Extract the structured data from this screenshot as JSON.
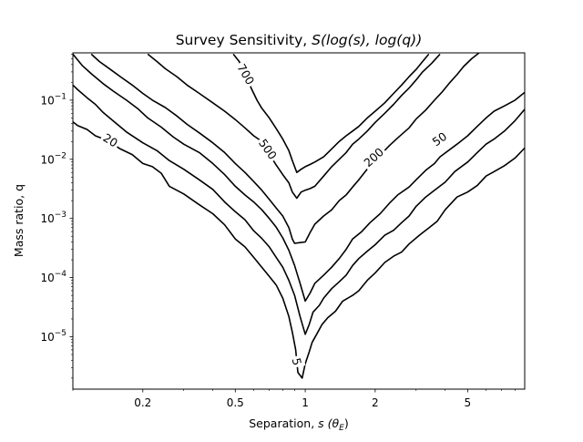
{
  "chart_data": {
    "type": "contour",
    "title_main": "Survey Sensitivity, ",
    "title_math": "S(log(s), log(q))",
    "xlabel_main": "Separation, ",
    "xlabel_math": "s (θ",
    "xlabel_sub": "E",
    "xlabel_close": ")",
    "ylabel": "Mass ratio, q",
    "xscale": "log",
    "yscale": "log",
    "xlim": [
      0.1,
      8.8
    ],
    "ylim": [
      1.3e-06,
      0.63
    ],
    "grid": false,
    "legend": "none",
    "line_color": "#000000",
    "x_ticks": [
      {
        "value": 0.2,
        "label": "0.2"
      },
      {
        "value": 0.5,
        "label": "0.5"
      },
      {
        "value": 1,
        "label": "1"
      },
      {
        "value": 2,
        "label": "2"
      },
      {
        "value": 5,
        "label": "5"
      }
    ],
    "y_ticks": [
      {
        "value": 1e-05,
        "base": "10",
        "exp": "−5"
      },
      {
        "value": 0.0001,
        "base": "10",
        "exp": "−4"
      },
      {
        "value": 0.001,
        "base": "10",
        "exp": "−3"
      },
      {
        "value": 0.01,
        "base": "10",
        "exp": "−2"
      },
      {
        "value": 0.1,
        "base": "10",
        "exp": "−1"
      }
    ],
    "contours": [
      {
        "level": 5,
        "label": "5",
        "label_at": [
          0.92,
          3.8e-06
        ],
        "label_rotation": 78,
        "points": [
          [
            0.1,
            0.043
          ],
          [
            0.105,
            0.037
          ],
          [
            0.115,
            0.032
          ],
          [
            0.125,
            0.025
          ],
          [
            0.14,
            0.021
          ],
          [
            0.16,
            0.015
          ],
          [
            0.18,
            0.012
          ],
          [
            0.2,
            0.0085
          ],
          [
            0.22,
            0.0075
          ],
          [
            0.24,
            0.0058
          ],
          [
            0.26,
            0.0035
          ],
          [
            0.3,
            0.0026
          ],
          [
            0.35,
            0.0017
          ],
          [
            0.4,
            0.0012
          ],
          [
            0.45,
            0.00078
          ],
          [
            0.5,
            0.00045
          ],
          [
            0.55,
            0.00033
          ],
          [
            0.6,
            0.00022
          ],
          [
            0.65,
            0.00015
          ],
          [
            0.7,
            0.000105
          ],
          [
            0.75,
            7.5e-05
          ],
          [
            0.8,
            4.5e-05
          ],
          [
            0.85,
            2.2e-05
          ],
          [
            0.88,
            1.2e-05
          ],
          [
            0.91,
            6e-06
          ],
          [
            0.93,
            2.5e-06
          ],
          [
            0.97,
            2e-06
          ],
          [
            1.0,
            3.5e-06
          ],
          [
            1.04,
            5.5e-06
          ],
          [
            1.07,
            8e-06
          ],
          [
            1.12,
            1.1e-05
          ],
          [
            1.18,
            1.6e-05
          ],
          [
            1.25,
            2.1e-05
          ],
          [
            1.35,
            2.7e-05
          ],
          [
            1.45,
            4e-05
          ],
          [
            1.6,
            5e-05
          ],
          [
            1.7,
            6e-05
          ],
          [
            1.85,
            9e-05
          ],
          [
            2.0,
            0.00012
          ],
          [
            2.2,
            0.00018
          ],
          [
            2.4,
            0.00023
          ],
          [
            2.6,
            0.00027
          ],
          [
            2.8,
            0.00037
          ],
          [
            3.1,
            0.00052
          ],
          [
            3.4,
            0.00069
          ],
          [
            3.7,
            0.0009
          ],
          [
            4.0,
            0.0014
          ],
          [
            4.5,
            0.0023
          ],
          [
            5.0,
            0.0028
          ],
          [
            5.5,
            0.0036
          ],
          [
            6.0,
            0.0052
          ],
          [
            6.5,
            0.0062
          ],
          [
            7.2,
            0.0078
          ],
          [
            8.0,
            0.0105
          ],
          [
            8.8,
            0.0155
          ]
        ]
      },
      {
        "level": 20,
        "label": "20",
        "label_at": [
          0.145,
          0.021
        ],
        "label_rotation": 32,
        "points": [
          [
            0.1,
            0.18
          ],
          [
            0.105,
            0.15
          ],
          [
            0.115,
            0.11
          ],
          [
            0.125,
            0.085
          ],
          [
            0.135,
            0.062
          ],
          [
            0.17,
            0.029
          ],
          [
            0.2,
            0.019
          ],
          [
            0.23,
            0.014
          ],
          [
            0.26,
            0.0095
          ],
          [
            0.3,
            0.0068
          ],
          [
            0.35,
            0.0045
          ],
          [
            0.4,
            0.0031
          ],
          [
            0.45,
            0.0019
          ],
          [
            0.5,
            0.0013
          ],
          [
            0.55,
            0.00095
          ],
          [
            0.6,
            0.00062
          ],
          [
            0.65,
            0.00046
          ],
          [
            0.7,
            0.00033
          ],
          [
            0.75,
            0.00022
          ],
          [
            0.8,
            0.00015
          ],
          [
            0.85,
            9e-05
          ],
          [
            0.9,
            5e-05
          ],
          [
            0.95,
            2.2e-05
          ],
          [
            1.0,
            1.1e-05
          ],
          [
            1.04,
            1.6e-05
          ],
          [
            1.08,
            2.6e-05
          ],
          [
            1.15,
            3.4e-05
          ],
          [
            1.2,
            4.5e-05
          ],
          [
            1.3,
            6.5e-05
          ],
          [
            1.4,
            8.5e-05
          ],
          [
            1.5,
            0.00011
          ],
          [
            1.6,
            0.00016
          ],
          [
            1.7,
            0.00021
          ],
          [
            1.85,
            0.00028
          ],
          [
            2.0,
            0.00036
          ],
          [
            2.2,
            0.00052
          ],
          [
            2.4,
            0.00063
          ],
          [
            2.6,
            0.00085
          ],
          [
            2.8,
            0.0011
          ],
          [
            3.0,
            0.0016
          ],
          [
            3.3,
            0.0023
          ],
          [
            3.6,
            0.003
          ],
          [
            4.0,
            0.0041
          ],
          [
            4.4,
            0.0062
          ],
          [
            5.0,
            0.009
          ],
          [
            5.5,
            0.013
          ],
          [
            6.0,
            0.018
          ],
          [
            6.5,
            0.022
          ],
          [
            7.2,
            0.03
          ],
          [
            8.0,
            0.045
          ],
          [
            8.8,
            0.07
          ]
        ]
      },
      {
        "level": 50,
        "label": "50",
        "label_at": [
          3.78,
          0.022
        ],
        "label_rotation": -35,
        "points": [
          [
            0.1,
            0.6
          ],
          [
            0.11,
            0.38
          ],
          [
            0.12,
            0.28
          ],
          [
            0.135,
            0.19
          ],
          [
            0.15,
            0.14
          ],
          [
            0.17,
            0.1
          ],
          [
            0.19,
            0.072
          ],
          [
            0.21,
            0.05
          ],
          [
            0.24,
            0.035
          ],
          [
            0.27,
            0.024
          ],
          [
            0.3,
            0.018
          ],
          [
            0.35,
            0.013
          ],
          [
            0.4,
            0.0085
          ],
          [
            0.45,
            0.0055
          ],
          [
            0.5,
            0.0035
          ],
          [
            0.55,
            0.0025
          ],
          [
            0.6,
            0.0019
          ],
          [
            0.65,
            0.0014
          ],
          [
            0.7,
            0.001
          ],
          [
            0.75,
            0.00071
          ],
          [
            0.8,
            0.00047
          ],
          [
            0.85,
            0.00029
          ],
          [
            0.9,
            0.00016
          ],
          [
            0.95,
            8e-05
          ],
          [
            1.0,
            4e-05
          ],
          [
            1.05,
            5.5e-05
          ],
          [
            1.1,
            8e-05
          ],
          [
            1.2,
            0.00011
          ],
          [
            1.3,
            0.00015
          ],
          [
            1.4,
            0.00021
          ],
          [
            1.5,
            0.0003
          ],
          [
            1.6,
            0.00045
          ],
          [
            1.75,
            0.0006
          ],
          [
            1.9,
            0.00085
          ],
          [
            2.1,
            0.0012
          ],
          [
            2.3,
            0.0018
          ],
          [
            2.5,
            0.0025
          ],
          [
            2.8,
            0.0034
          ],
          [
            3.0,
            0.0045
          ],
          [
            3.3,
            0.0065
          ],
          [
            3.6,
            0.0085
          ],
          [
            3.8,
            0.011
          ],
          [
            4.5,
            0.018
          ],
          [
            5.0,
            0.025
          ],
          [
            5.5,
            0.036
          ],
          [
            6.0,
            0.05
          ],
          [
            6.5,
            0.065
          ],
          [
            7.2,
            0.08
          ],
          [
            8.0,
            0.1
          ],
          [
            8.8,
            0.135
          ]
        ]
      },
      {
        "level": 200,
        "label": "200",
        "label_at": [
          1.97,
          0.0108
        ],
        "label_rotation": -42,
        "points": [
          [
            0.12,
            0.6
          ],
          [
            0.13,
            0.45
          ],
          [
            0.145,
            0.33
          ],
          [
            0.16,
            0.25
          ],
          [
            0.18,
            0.18
          ],
          [
            0.2,
            0.13
          ],
          [
            0.22,
            0.1
          ],
          [
            0.25,
            0.075
          ],
          [
            0.28,
            0.054
          ],
          [
            0.31,
            0.039
          ],
          [
            0.35,
            0.028
          ],
          [
            0.4,
            0.019
          ],
          [
            0.45,
            0.013
          ],
          [
            0.5,
            0.0085
          ],
          [
            0.55,
            0.006
          ],
          [
            0.6,
            0.0042
          ],
          [
            0.65,
            0.003
          ],
          [
            0.7,
            0.0021
          ],
          [
            0.75,
            0.0015
          ],
          [
            0.8,
            0.0011
          ],
          [
            0.85,
            0.0007
          ],
          [
            0.88,
            0.00045
          ],
          [
            0.9,
            0.00038
          ],
          [
            0.95,
            0.00039
          ],
          [
            1.0,
            0.0004
          ],
          [
            1.05,
            0.00058
          ],
          [
            1.1,
            0.0008
          ],
          [
            1.2,
            0.0011
          ],
          [
            1.3,
            0.0014
          ],
          [
            1.4,
            0.002
          ],
          [
            1.5,
            0.0025
          ],
          [
            1.6,
            0.0034
          ],
          [
            1.7,
            0.0045
          ],
          [
            1.8,
            0.006
          ],
          [
            1.9,
            0.0078
          ],
          [
            2.3,
            0.017
          ],
          [
            2.5,
            0.023
          ],
          [
            2.8,
            0.034
          ],
          [
            3.0,
            0.048
          ],
          [
            3.3,
            0.068
          ],
          [
            3.6,
            0.1
          ],
          [
            3.9,
            0.14
          ],
          [
            4.2,
            0.2
          ],
          [
            4.5,
            0.27
          ],
          [
            4.8,
            0.37
          ],
          [
            5.2,
            0.5
          ],
          [
            5.6,
            0.63
          ]
        ]
      },
      {
        "level": 500,
        "label": "500",
        "label_at": [
          0.69,
          0.0148
        ],
        "label_rotation": 55,
        "points": [
          [
            0.21,
            0.6
          ],
          [
            0.23,
            0.45
          ],
          [
            0.25,
            0.34
          ],
          [
            0.28,
            0.25
          ],
          [
            0.31,
            0.18
          ],
          [
            0.35,
            0.13
          ],
          [
            0.4,
            0.09
          ],
          [
            0.45,
            0.065
          ],
          [
            0.5,
            0.047
          ],
          [
            0.55,
            0.034
          ],
          [
            0.6,
            0.025
          ],
          [
            0.64,
            0.021
          ],
          [
            0.75,
            0.008
          ],
          [
            0.8,
            0.0055
          ],
          [
            0.85,
            0.004
          ],
          [
            0.88,
            0.0028
          ],
          [
            0.92,
            0.0022
          ],
          [
            0.96,
            0.0028
          ],
          [
            1.0,
            0.003
          ],
          [
            1.05,
            0.0032
          ],
          [
            1.1,
            0.0035
          ],
          [
            1.2,
            0.0052
          ],
          [
            1.3,
            0.0075
          ],
          [
            1.4,
            0.01
          ],
          [
            1.5,
            0.013
          ],
          [
            1.6,
            0.018
          ],
          [
            1.7,
            0.022
          ],
          [
            1.85,
            0.03
          ],
          [
            2.0,
            0.042
          ],
          [
            2.2,
            0.06
          ],
          [
            2.4,
            0.085
          ],
          [
            2.6,
            0.12
          ],
          [
            2.8,
            0.16
          ],
          [
            3.0,
            0.22
          ],
          [
            3.2,
            0.3
          ],
          [
            3.5,
            0.42
          ],
          [
            3.8,
            0.6
          ]
        ]
      },
      {
        "level": 700,
        "label": "700",
        "label_at": [
          0.555,
          0.275
        ],
        "label_rotation": 60,
        "points": [
          [
            0.49,
            0.6
          ],
          [
            0.52,
            0.45
          ],
          [
            0.59,
            0.15
          ],
          [
            0.62,
            0.1
          ],
          [
            0.65,
            0.073
          ],
          [
            0.7,
            0.05
          ],
          [
            0.75,
            0.033
          ],
          [
            0.8,
            0.022
          ],
          [
            0.85,
            0.014
          ],
          [
            0.88,
            0.0095
          ],
          [
            0.92,
            0.006
          ],
          [
            0.96,
            0.0068
          ],
          [
            1.0,
            0.0075
          ],
          [
            1.05,
            0.0082
          ],
          [
            1.1,
            0.009
          ],
          [
            1.2,
            0.011
          ],
          [
            1.3,
            0.015
          ],
          [
            1.4,
            0.02
          ],
          [
            1.5,
            0.025
          ],
          [
            1.6,
            0.03
          ],
          [
            1.7,
            0.036
          ],
          [
            1.85,
            0.05
          ],
          [
            2.0,
            0.065
          ],
          [
            2.2,
            0.09
          ],
          [
            2.4,
            0.13
          ],
          [
            2.6,
            0.18
          ],
          [
            2.8,
            0.25
          ],
          [
            3.0,
            0.33
          ],
          [
            3.2,
            0.45
          ],
          [
            3.4,
            0.6
          ]
        ]
      }
    ]
  }
}
